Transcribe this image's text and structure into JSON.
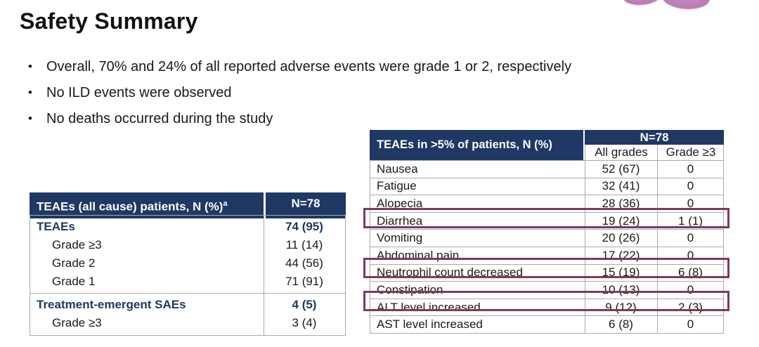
{
  "slide": {
    "title": "Safety Summary",
    "bullet_char": "•",
    "bullets": [
      "Overall, 70% and 24% of all reported adverse events were grade 1 or 2, respectively",
      "No ILD events were observed",
      "No deaths occurred during the study"
    ]
  },
  "colors": {
    "header_navy": "#1F3864",
    "highlight_box": "#7C3A60",
    "table_border_gray": "#ABABAB",
    "ribbon_purple": "#B879B6",
    "body_text": "#1A1A1A"
  },
  "left_table": {
    "header": {
      "label": "TEAEs (all cause) patients, N (%)",
      "label_superscript": "a",
      "value": "N=78"
    },
    "rows": [
      {
        "label": "TEAEs",
        "value": "74 (95)"
      },
      {
        "label": "Grade ≥3",
        "value": "11 (14)"
      },
      {
        "label": "Grade 2",
        "value": "44 (56)"
      },
      {
        "label": "Grade 1",
        "value": "71 (91)"
      },
      {
        "label": "Treatment-emergent SAEs",
        "value": "4 (5)"
      },
      {
        "label": "Grade ≥3",
        "value": "3 (4)"
      }
    ]
  },
  "right_table": {
    "header": {
      "label": "TEAEs in >5% of patients, N (%)",
      "group": "N=78",
      "col1": "All grades",
      "col2": "Grade ≥3"
    },
    "rows": [
      {
        "label": "Nausea",
        "all_grades": "52 (67)",
        "grade_ge3": "0",
        "highlighted": false
      },
      {
        "label": "Fatigue",
        "all_grades": "32 (41)",
        "grade_ge3": "0",
        "highlighted": false
      },
      {
        "label": "Alopecia",
        "all_grades": "28 (36)",
        "grade_ge3": "0",
        "highlighted": false
      },
      {
        "label": "Diarrhea",
        "all_grades": "19 (24)",
        "grade_ge3": "1 (1)",
        "highlighted": true
      },
      {
        "label": "Vomiting",
        "all_grades": "20 (26)",
        "grade_ge3": "0",
        "highlighted": false
      },
      {
        "label": "Abdominal pain",
        "all_grades": "17 (22)",
        "grade_ge3": "0",
        "highlighted": false
      },
      {
        "label": "Neutrophil count decreased",
        "all_grades": "15 (19)",
        "grade_ge3": "6 (8)",
        "highlighted": true
      },
      {
        "label": "Constipation",
        "all_grades": "10 (13)",
        "grade_ge3": "0",
        "highlighted": false
      },
      {
        "label": "ALT level increased",
        "all_grades": "9 (12)",
        "grade_ge3": "2 (3)",
        "highlighted": true
      },
      {
        "label": "AST level increased",
        "all_grades": "6 (8)",
        "grade_ge3": "0",
        "highlighted": false
      }
    ]
  }
}
